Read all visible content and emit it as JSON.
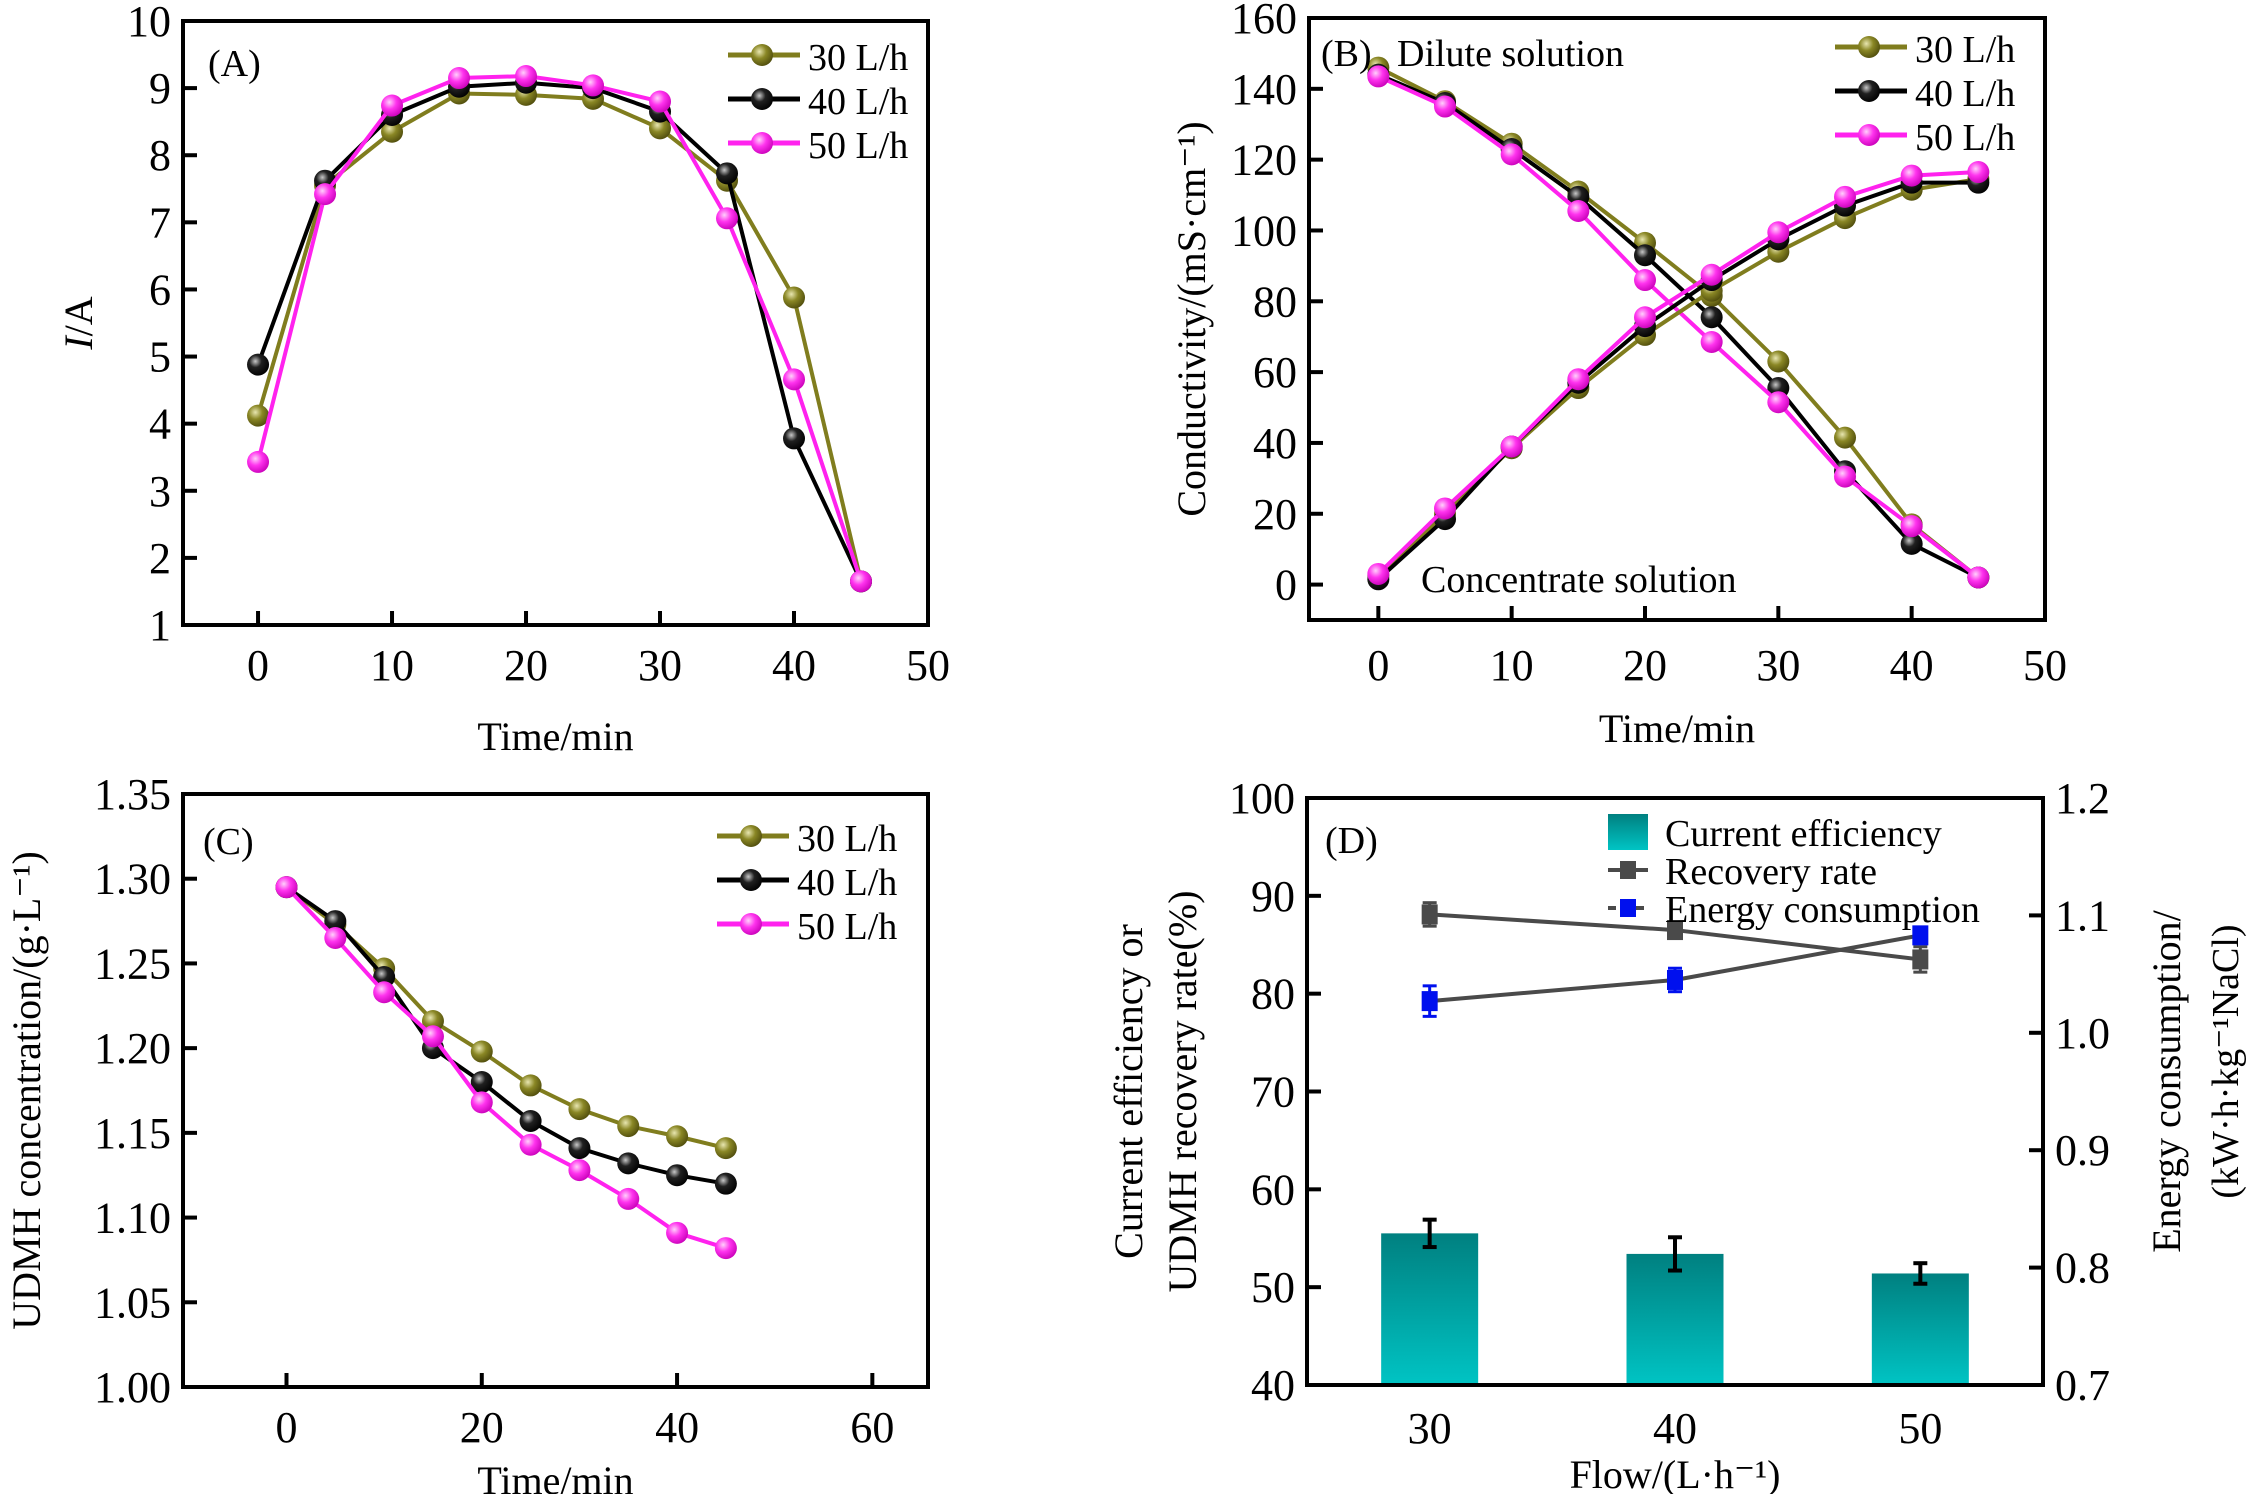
{
  "colors": {
    "s30": "#807d1e",
    "s40": "#000000",
    "s50": "#ff22ee",
    "bar_top": "#008080",
    "bar_bottom": "#00c4c4",
    "recovery": "#4a4a4a",
    "energy": "#0010ee"
  },
  "chart_data": [
    {
      "panel": "A",
      "type": "line",
      "label": "(A)",
      "title": "",
      "xlabel": "Time/min",
      "ylabel": "I/A",
      "xlim": [
        -5.6,
        50
      ],
      "ylim": [
        1,
        10
      ],
      "xticks": [
        0,
        10,
        20,
        30,
        40,
        50
      ],
      "yticks": [
        1,
        2,
        3,
        4,
        5,
        6,
        7,
        8,
        9,
        10
      ],
      "legend": "top-right",
      "x": [
        0,
        5,
        10,
        15,
        20,
        25,
        30,
        35,
        40,
        45
      ],
      "series": [
        {
          "name": "30 L/h",
          "color_key": "s30",
          "values": [
            4.12,
            7.55,
            8.35,
            8.92,
            8.9,
            8.84,
            8.4,
            7.62,
            5.88,
            1.65
          ]
        },
        {
          "name": "40 L/h",
          "color_key": "s40",
          "values": [
            4.88,
            7.62,
            8.6,
            9.02,
            9.08,
            9.0,
            8.65,
            7.73,
            3.78,
            1.65
          ]
        },
        {
          "name": "50 L/h",
          "color_key": "s50",
          "values": [
            3.43,
            7.42,
            8.74,
            9.15,
            9.18,
            9.04,
            8.8,
            7.06,
            4.66,
            1.65
          ]
        }
      ]
    },
    {
      "panel": "B",
      "type": "line",
      "label": "(B)",
      "annotations": [
        "Dilute solution",
        "Concentrate solution"
      ],
      "xlabel": "Time/min",
      "ylabel": "Conductivity/(mS·cm⁻¹)",
      "xlim": [
        -5.2,
        50
      ],
      "ylim": [
        -10,
        160
      ],
      "xticks": [
        0,
        10,
        20,
        30,
        40,
        50
      ],
      "yticks": [
        0,
        20,
        40,
        60,
        80,
        100,
        120,
        140,
        160
      ],
      "legend": "top-right",
      "x": [
        0,
        5,
        10,
        15,
        20,
        25,
        30,
        35,
        40,
        45
      ],
      "series": [
        {
          "name": "30 L/h",
          "group": "dilute",
          "color_key": "s30",
          "values": [
            146,
            136.5,
            124.5,
            111,
            96.5,
            81.5,
            63,
            41.5,
            17,
            2
          ]
        },
        {
          "name": "40 L/h",
          "group": "dilute",
          "color_key": "s40",
          "values": [
            144,
            136,
            123,
            109.5,
            93,
            75.5,
            55.5,
            32,
            11.5,
            2
          ]
        },
        {
          "name": "50 L/h",
          "group": "dilute",
          "color_key": "s50",
          "values": [
            143.5,
            135,
            121.5,
            105.5,
            86,
            68.5,
            51.5,
            30.5,
            16.5,
            2
          ]
        },
        {
          "name": "30 L/h",
          "group": "concentrate",
          "color_key": "s30",
          "values": [
            2.5,
            20,
            38.5,
            55.5,
            70.5,
            83,
            94,
            103.5,
            111.5,
            114.5
          ]
        },
        {
          "name": "40 L/h",
          "group": "concentrate",
          "color_key": "s40",
          "values": [
            1.5,
            18.5,
            39,
            57,
            73,
            86,
            97.5,
            107,
            113.5,
            113.5
          ]
        },
        {
          "name": "50 L/h",
          "group": "concentrate",
          "color_key": "s50",
          "values": [
            3,
            21.5,
            39,
            58,
            75.5,
            87.5,
            99.5,
            109.5,
            115.5,
            116.5
          ]
        }
      ]
    },
    {
      "panel": "C",
      "type": "line",
      "label": "(C)",
      "xlabel": "Time/min",
      "ylabel": "UDMH concentration/(g·L⁻¹)",
      "xlim": [
        -10.6,
        65.7
      ],
      "ylim": [
        1.0,
        1.35
      ],
      "xticks": [
        0,
        20,
        40,
        60
      ],
      "yticks": [
        "1.00",
        "1.05",
        "1.10",
        "1.15",
        "1.20",
        "1.25",
        "1.30",
        "1.35"
      ],
      "legend": "top-right",
      "x": [
        0,
        5,
        10,
        15,
        20,
        25,
        30,
        35,
        40,
        45
      ],
      "series": [
        {
          "name": "30 L/h",
          "color_key": "s30",
          "values": [
            1.295,
            1.273,
            1.247,
            1.216,
            1.198,
            1.178,
            1.164,
            1.154,
            1.148,
            1.141
          ]
        },
        {
          "name": "40 L/h",
          "color_key": "s40",
          "values": [
            1.295,
            1.275,
            1.242,
            1.2,
            1.18,
            1.157,
            1.141,
            1.132,
            1.125,
            1.12
          ]
        },
        {
          "name": "50 L/h",
          "color_key": "s50",
          "values": [
            1.295,
            1.265,
            1.233,
            1.207,
            1.168,
            1.143,
            1.128,
            1.111,
            1.091,
            1.082
          ]
        }
      ]
    },
    {
      "panel": "D",
      "type": "bar",
      "label": "(D)",
      "xlabel": "Flow/(L·h⁻¹)",
      "ylabel_left": [
        "Current efficiency or",
        "UDMH recovery rate(%)"
      ],
      "ylabel_right": [
        "Energy consumption/",
        "(kW·h·kg⁻¹NaCl)"
      ],
      "categories": [
        "30",
        "40",
        "50"
      ],
      "ylim_left": [
        40,
        100
      ],
      "ylim_right": [
        0.7,
        1.2
      ],
      "yticks_left": [
        40,
        50,
        60,
        70,
        80,
        90,
        100
      ],
      "yticks_right": [
        "0.7",
        "0.8",
        "0.9",
        "1.0",
        "1.1",
        "1.2"
      ],
      "legend": "top-right",
      "series": [
        {
          "name": "Current efficiency",
          "kind": "bar",
          "axis": "left",
          "values": [
            55.5,
            53.4,
            51.4
          ],
          "errors": [
            1.4,
            1.7,
            1.05
          ]
        },
        {
          "name": "Recovery rate",
          "kind": "line",
          "axis": "left",
          "color_key": "recovery",
          "values": [
            88.1,
            86.5,
            83.5
          ],
          "errors": [
            1.2,
            0.8,
            1.3
          ]
        },
        {
          "name": "Energy consumption",
          "kind": "line",
          "axis": "right",
          "color_key": "energy",
          "values": [
            1.027,
            1.045,
            1.083
          ],
          "errors": [
            0.013,
            0.01,
            0.006
          ]
        }
      ]
    }
  ]
}
